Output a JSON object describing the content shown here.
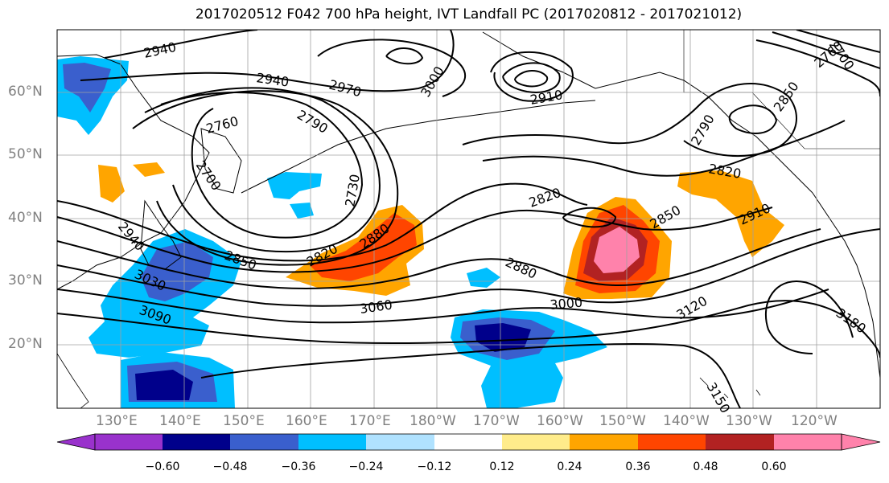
{
  "title": "2017020512 F042 700 hPa height, IVT Landfall PC (2017020812 - 2017021012)",
  "map": {
    "lat_ticks": [
      "60°N",
      "50°N",
      "40°N",
      "30°N",
      "20°N"
    ],
    "lon_ticks": [
      "130°E",
      "140°E",
      "150°E",
      "160°E",
      "170°E",
      "180°W",
      "170°W",
      "160°W",
      "150°W",
      "140°W",
      "130°W",
      "120°W"
    ],
    "contour_labels": [
      "2940",
      "2940",
      "2970",
      "3000",
      "2910",
      "2760",
      "2790",
      "2700",
      "2730",
      "2820",
      "2880",
      "2820",
      "2850",
      "2880",
      "3060",
      "3000",
      "3030",
      "3090",
      "2850",
      "2940",
      "2820",
      "2790",
      "2850",
      "2910",
      "3120",
      "3180",
      "3150",
      "2760",
      "2700"
    ],
    "colors": {
      "background": "#ffffff",
      "land_outline": "#000000",
      "gridline": "#a0a0a0"
    }
  },
  "colorbar": {
    "ticks": [
      "−0.60",
      "−0.48",
      "−0.36",
      "−0.24",
      "−0.12",
      "0.12",
      "0.24",
      "0.36",
      "0.48",
      "0.60"
    ],
    "colors": [
      "#9932cc",
      "#00008b",
      "#3a5fcd",
      "#00bfff",
      "#b0e2ff",
      "#ffffff",
      "#ffec8b",
      "#ffa500",
      "#ff4500",
      "#b22222",
      "#ff82ab"
    ]
  }
}
